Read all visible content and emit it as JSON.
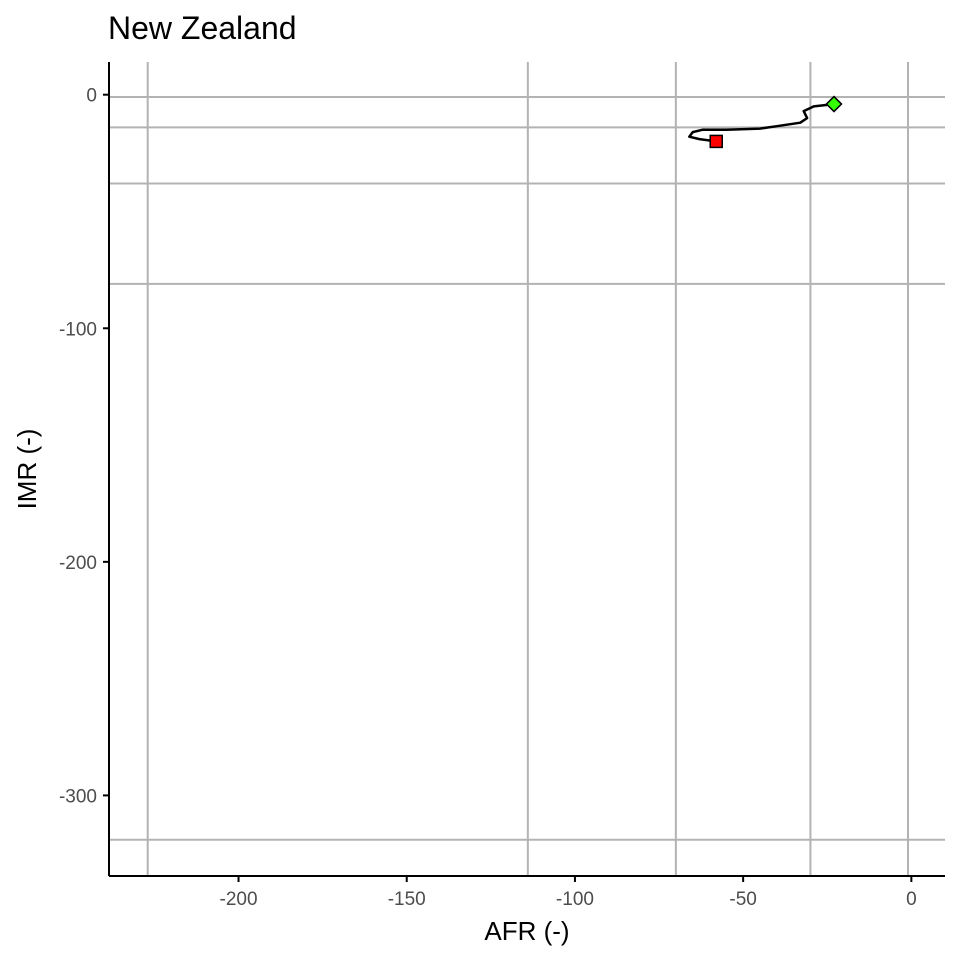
{
  "chart_data": {
    "type": "line",
    "title": "New Zealand",
    "xlabel": "AFR (-)",
    "ylabel": "IMR (-)",
    "xlim": [
      -238.5,
      10
    ],
    "ylim": [
      -334.5,
      14
    ],
    "x_ticks": [
      -200,
      -150,
      -100,
      -50,
      0
    ],
    "y_ticks": [
      0,
      -100,
      -200,
      -300
    ],
    "reference_lines": {
      "vertical": [
        -227,
        -114,
        -70,
        -30,
        -1
      ],
      "horizontal": [
        -1,
        -14,
        -38,
        -81,
        -319
      ]
    },
    "grid": false,
    "colors": {
      "line": "#000000",
      "start_marker": "#ff0000",
      "end_marker": "#33ff00",
      "reference_line": "#b3b3b3",
      "axis": "#000000"
    },
    "series": [
      {
        "points": [
          {
            "x": -58,
            "y": -20
          },
          {
            "x": -63,
            "y": -19
          },
          {
            "x": -66,
            "y": -18
          },
          {
            "x": -65,
            "y": -16
          },
          {
            "x": -62,
            "y": -15
          },
          {
            "x": -55,
            "y": -15
          },
          {
            "x": -45,
            "y": -14.5
          },
          {
            "x": -40,
            "y": -13.5
          },
          {
            "x": -33,
            "y": -12
          },
          {
            "x": -31,
            "y": -10
          },
          {
            "x": -32,
            "y": -7
          },
          {
            "x": -29,
            "y": -5
          },
          {
            "x": -26,
            "y": -4.5
          },
          {
            "x": -23,
            "y": -4
          }
        ]
      }
    ],
    "markers": [
      {
        "role": "start",
        "shape": "square",
        "x": -58,
        "y": -20
      },
      {
        "role": "end",
        "shape": "diamond",
        "x": -23,
        "y": -4
      }
    ]
  }
}
